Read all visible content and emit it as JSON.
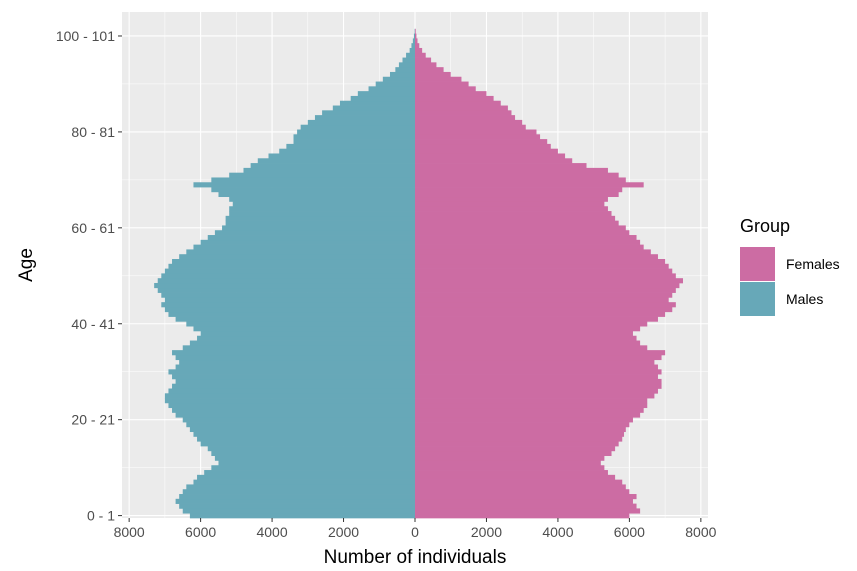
{
  "chart_data": {
    "type": "bar",
    "orientation": "horizontal",
    "xlabel": "Number of individuals",
    "ylabel": "Age",
    "xlim": [
      -8200,
      8200
    ],
    "xticks": [
      -8000,
      -6000,
      -4000,
      -2000,
      0,
      2000,
      4000,
      6000,
      8000
    ],
    "xtick_labels": [
      "8000",
      "6000",
      "4000",
      "2000",
      "0",
      "2000",
      "4000",
      "6000",
      "8000"
    ],
    "yticks": [
      {
        "age": 0,
        "label": "0 - 1"
      },
      {
        "age": 20,
        "label": "20 - 21"
      },
      {
        "age": 40,
        "label": "40 - 41"
      },
      {
        "age": 60,
        "label": "60 - 61"
      },
      {
        "age": 80,
        "label": "80 - 81"
      },
      {
        "age": 100,
        "label": "100 - 101"
      }
    ],
    "ages_start": 0,
    "grid": true,
    "legend": {
      "title": "Group",
      "position": "right",
      "entries": [
        {
          "name": "Females",
          "color": "#CC6CA3"
        },
        {
          "name": "Males",
          "color": "#67A8B8"
        }
      ]
    },
    "series": [
      {
        "name": "Females",
        "color": "#CC6CA3",
        "values": [
          6000,
          6300,
          6200,
          6100,
          6200,
          6000,
          5900,
          5800,
          5600,
          5400,
          5300,
          5200,
          5300,
          5500,
          5600,
          5700,
          5800,
          5850,
          5900,
          6000,
          6100,
          6300,
          6400,
          6500,
          6500,
          6700,
          6800,
          6900,
          6900,
          6800,
          6900,
          6800,
          6700,
          6900,
          7000,
          6500,
          6300,
          6200,
          6100,
          6300,
          6500,
          6800,
          7000,
          7200,
          7300,
          7100,
          7200,
          7300,
          7400,
          7500,
          7300,
          7200,
          7100,
          7000,
          6800,
          6600,
          6400,
          6300,
          6200,
          6000,
          5900,
          5700,
          5600,
          5500,
          5400,
          5300,
          5400,
          5700,
          5800,
          6400,
          5900,
          5700,
          5400,
          4800,
          4400,
          4200,
          4000,
          3800,
          3700,
          3500,
          3400,
          3100,
          3000,
          2800,
          2700,
          2600,
          2400,
          2200,
          2000,
          1700,
          1500,
          1300,
          1000,
          800,
          600,
          450,
          300,
          200,
          120,
          70,
          40,
          20
        ]
      },
      {
        "name": "Males",
        "color": "#67A8B8",
        "values": [
          6300,
          6500,
          6600,
          6700,
          6600,
          6500,
          6400,
          6200,
          6100,
          5900,
          5700,
          5500,
          5600,
          5700,
          5800,
          6000,
          6100,
          6200,
          6300,
          6400,
          6500,
          6700,
          6800,
          6900,
          7000,
          7000,
          6900,
          6800,
          6700,
          6800,
          6900,
          6700,
          6600,
          6700,
          6800,
          6500,
          6300,
          6100,
          6000,
          6200,
          6400,
          6700,
          6900,
          7000,
          7100,
          7000,
          7100,
          7200,
          7300,
          7200,
          7100,
          7000,
          6900,
          6800,
          6600,
          6400,
          6200,
          6000,
          5800,
          5600,
          5400,
          5300,
          5300,
          5200,
          5200,
          5100,
          5200,
          5500,
          5700,
          6200,
          5700,
          5200,
          4800,
          4600,
          4400,
          4100,
          3800,
          3600,
          3400,
          3400,
          3300,
          3200,
          3000,
          2800,
          2600,
          2300,
          2100,
          1800,
          1600,
          1300,
          1100,
          900,
          700,
          550,
          450,
          350,
          250,
          150,
          100,
          60,
          30,
          10
        ]
      }
    ]
  }
}
